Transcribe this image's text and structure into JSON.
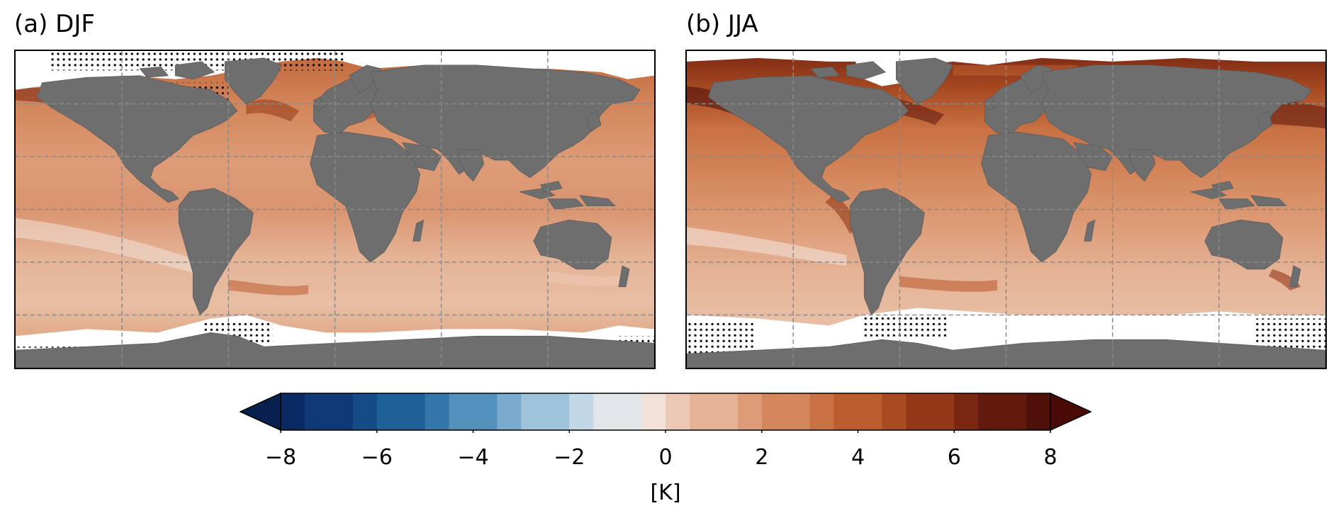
{
  "panels": [
    {
      "id": "a",
      "label": "(a) DJF",
      "stippling": [
        "arctic",
        "antarctic-partial"
      ],
      "palette_emphasis": "moderate warming, strongest in North Atlantic and Barents Sea"
    },
    {
      "id": "b",
      "label": "(b) JJA",
      "stippling": [
        "antarctic-wide"
      ],
      "palette_emphasis": "strong warming in North Pacific, North Atlantic and Arctic margins"
    }
  ],
  "colorbar": {
    "ticks": [
      "−8",
      "−6",
      "−4",
      "−2",
      "0",
      "2",
      "4",
      "6",
      "8"
    ],
    "tick_values": [
      -8,
      -6,
      -4,
      -2,
      0,
      2,
      4,
      6,
      8
    ],
    "range": [
      -8,
      8
    ],
    "step": 0.5,
    "extend": "both",
    "unit": "[K]",
    "cmap": "RdBu_r-like brown/blue diverging",
    "colors_negative": [
      "#0b2a63",
      "#0f3a75",
      "#154b86",
      "#1f5f98",
      "#3576aa",
      "#5490bc",
      "#78abcd",
      "#9ec3db",
      "#c3d8e6",
      "#e3e6e8"
    ],
    "colors_positive": [
      "#f1e1d8",
      "#ecc9b6",
      "#e5b396",
      "#dd9c77",
      "#d4875c",
      "#c97244",
      "#bc5d30",
      "#a84a22",
      "#923818",
      "#7a2712",
      "#621a0d",
      "#4e1008"
    ]
  },
  "colors": {
    "land": "#6e6e6e",
    "ice_mask": "#ffffff",
    "grid": "#8a8a8a",
    "ocean_base_djf": "#dc9a74",
    "ocean_base_jja": "#d88c62"
  }
}
